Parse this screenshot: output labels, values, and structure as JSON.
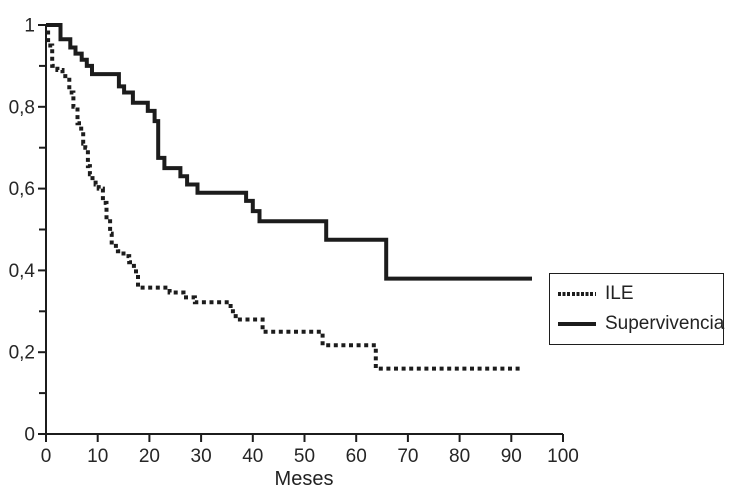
{
  "chart_data": {
    "type": "line",
    "subtype": "kaplan-meier-step-survival",
    "title": "",
    "xlabel": "Meses",
    "ylabel": "",
    "xlim": [
      0,
      100
    ],
    "ylim": [
      0,
      1
    ],
    "grid": false,
    "line_color": "#1c1c1c",
    "x_ticks": [
      {
        "v": 0,
        "label": "0"
      },
      {
        "v": 10,
        "label": "10"
      },
      {
        "v": 20,
        "label": "20"
      },
      {
        "v": 30,
        "label": "30"
      },
      {
        "v": 40,
        "label": "40"
      },
      {
        "v": 50,
        "label": "50"
      },
      {
        "v": 60,
        "label": "60"
      },
      {
        "v": 70,
        "label": "70"
      },
      {
        "v": 80,
        "label": "80"
      },
      {
        "v": 90,
        "label": "90"
      },
      {
        "v": 100,
        "label": "100"
      }
    ],
    "y_ticks": [
      {
        "v": 0,
        "label": "0"
      },
      {
        "v": 0.2,
        "label": "0,2"
      },
      {
        "v": 0.4,
        "label": "0,4"
      },
      {
        "v": 0.6,
        "label": "0,6"
      },
      {
        "v": 0.8,
        "label": "0,8"
      },
      {
        "v": 1,
        "label": "1"
      }
    ],
    "y_minor_ticks": [
      0.1,
      0.3,
      0.5,
      0.7,
      0.9
    ],
    "legend": {
      "position": "right-middle",
      "items": [
        {
          "label": "ILE",
          "style": "dotted"
        },
        {
          "label": "Supervivencia",
          "style": "solid"
        }
      ]
    },
    "series": [
      {
        "name": "ILE",
        "style": "dotted",
        "points": [
          [
            0,
            1.0
          ],
          [
            0.4,
            0.95
          ],
          [
            1.2,
            0.9
          ],
          [
            2.2,
            0.89
          ],
          [
            3.2,
            0.875
          ],
          [
            4.5,
            0.835
          ],
          [
            5.3,
            0.8
          ],
          [
            6.1,
            0.76
          ],
          [
            6.8,
            0.74
          ],
          [
            7.2,
            0.71
          ],
          [
            7.6,
            0.7
          ],
          [
            8.1,
            0.655
          ],
          [
            8.5,
            0.635
          ],
          [
            9.0,
            0.62
          ],
          [
            9.6,
            0.61
          ],
          [
            10.2,
            0.6
          ],
          [
            11.0,
            0.565
          ],
          [
            11.7,
            0.525
          ],
          [
            12.4,
            0.49
          ],
          [
            12.7,
            0.46
          ],
          [
            13.9,
            0.447
          ],
          [
            15.0,
            0.435
          ],
          [
            16.1,
            0.42
          ],
          [
            17.0,
            0.405
          ],
          [
            17.4,
            0.39
          ],
          [
            17.8,
            0.358
          ],
          [
            23.9,
            0.346
          ],
          [
            26.6,
            0.334
          ],
          [
            28.8,
            0.322
          ],
          [
            35.7,
            0.3
          ],
          [
            36.7,
            0.28
          ],
          [
            41.9,
            0.25
          ],
          [
            53.5,
            0.217
          ],
          [
            63.8,
            0.16
          ],
          [
            92,
            0.16
          ]
        ]
      },
      {
        "name": "Supervivencia",
        "style": "solid",
        "points": [
          [
            0,
            1.0
          ],
          [
            2.8,
            0.965
          ],
          [
            4.7,
            0.945
          ],
          [
            5.7,
            0.93
          ],
          [
            6.9,
            0.915
          ],
          [
            7.9,
            0.9
          ],
          [
            8.9,
            0.88
          ],
          [
            14.1,
            0.85
          ],
          [
            15.1,
            0.835
          ],
          [
            16.8,
            0.81
          ],
          [
            19.7,
            0.79
          ],
          [
            21.0,
            0.765
          ],
          [
            21.7,
            0.675
          ],
          [
            22.9,
            0.65
          ],
          [
            26.0,
            0.63
          ],
          [
            27.3,
            0.61
          ],
          [
            29.3,
            0.59
          ],
          [
            38.7,
            0.57
          ],
          [
            40.0,
            0.545
          ],
          [
            41.3,
            0.52
          ],
          [
            54.2,
            0.475
          ],
          [
            65.8,
            0.38
          ],
          [
            94,
            0.38
          ]
        ]
      }
    ]
  }
}
